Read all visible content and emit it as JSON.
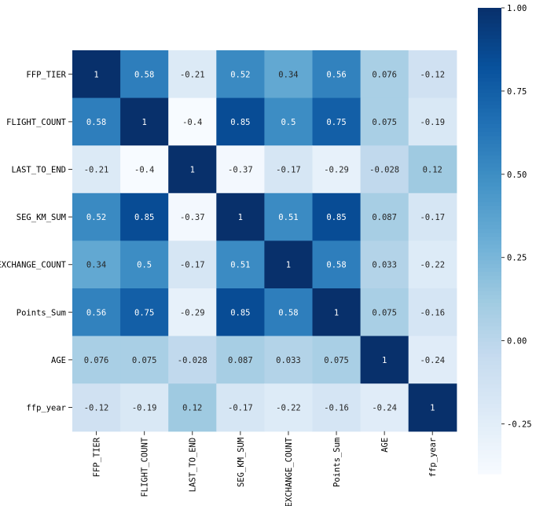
{
  "chart_data": {
    "type": "heatmap",
    "title": "",
    "xlabel": "",
    "ylabel": "",
    "labels": [
      "FFP_TIER",
      "FLIGHT_COUNT",
      "LAST_TO_END",
      "SEG_KM_SUM",
      "EXCHANGE_COUNT",
      "Points_Sum",
      "AGE",
      "ffp_year"
    ],
    "matrix": [
      [
        1,
        0.58,
        -0.21,
        0.52,
        0.34,
        0.56,
        0.076,
        -0.12
      ],
      [
        0.58,
        1,
        -0.4,
        0.85,
        0.5,
        0.75,
        0.075,
        -0.19
      ],
      [
        -0.21,
        -0.4,
        1,
        -0.37,
        -0.17,
        -0.29,
        -0.028,
        0.12
      ],
      [
        0.52,
        0.85,
        -0.37,
        1,
        0.51,
        0.85,
        0.087,
        -0.17
      ],
      [
        0.34,
        0.5,
        -0.17,
        0.51,
        1,
        0.58,
        0.033,
        -0.22
      ],
      [
        0.56,
        0.75,
        -0.29,
        0.85,
        0.58,
        1,
        0.075,
        -0.16
      ],
      [
        0.076,
        0.075,
        -0.028,
        0.087,
        0.033,
        0.075,
        1,
        -0.24
      ],
      [
        -0.12,
        -0.19,
        0.12,
        -0.17,
        -0.22,
        -0.16,
        -0.24,
        1
      ]
    ],
    "annotations": [
      [
        "1",
        "0.58",
        "-0.21",
        "0.52",
        "0.34",
        "0.56",
        "0.076",
        "-0.12"
      ],
      [
        "0.58",
        "1",
        "-0.4",
        "0.85",
        "0.5",
        "0.75",
        "0.075",
        "-0.19"
      ],
      [
        "-0.21",
        "-0.4",
        "1",
        "-0.37",
        "-0.17",
        "-0.29",
        "-0.028",
        "0.12"
      ],
      [
        "0.52",
        "0.85",
        "-0.37",
        "1",
        "0.51",
        "0.85",
        "0.087",
        "-0.17"
      ],
      [
        "0.34",
        "0.5",
        "-0.17",
        "0.51",
        "1",
        "0.58",
        "0.033",
        "-0.22"
      ],
      [
        "0.56",
        "0.75",
        "-0.29",
        "0.85",
        "0.58",
        "1",
        "0.075",
        "-0.16"
      ],
      [
        "0.076",
        "0.075",
        "-0.028",
        "0.087",
        "0.033",
        "0.075",
        "1",
        "-0.24"
      ],
      [
        "-0.12",
        "-0.19",
        "0.12",
        "-0.17",
        "-0.22",
        "-0.16",
        "-0.24",
        "1"
      ]
    ],
    "colormap": "Blues",
    "vmin": -0.4,
    "vmax": 1.0,
    "colorbar_ticks": [
      1.0,
      0.75,
      0.5,
      0.25,
      0.0,
      -0.25
    ],
    "colorbar_tick_labels": [
      "1.00",
      "0.75",
      "0.50",
      "0.25",
      "0.00",
      "-0.25"
    ],
    "colorbar_position": "right",
    "grid": false
  }
}
